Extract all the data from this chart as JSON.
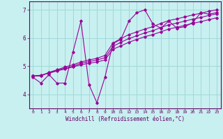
{
  "title": "",
  "xlabel": "Windchill (Refroidissement éolien,°C)",
  "ylabel": "",
  "background_color": "#c8f0f0",
  "grid_color": "#a0d8d8",
  "line_color": "#990099",
  "xlim": [
    -0.5,
    23.5
  ],
  "ylim": [
    3.5,
    7.3
  ],
  "xticks": [
    0,
    1,
    2,
    3,
    4,
    5,
    6,
    7,
    8,
    9,
    10,
    11,
    12,
    13,
    14,
    15,
    16,
    17,
    18,
    19,
    20,
    21,
    22,
    23
  ],
  "yticks": [
    4,
    5,
    6,
    7
  ],
  "x_data": [
    0,
    1,
    2,
    3,
    4,
    5,
    6,
    7,
    8,
    9,
    10,
    11,
    12,
    13,
    14,
    15,
    16,
    17,
    18,
    19,
    20,
    21,
    22,
    23
  ],
  "y_main": [
    4.6,
    4.4,
    4.7,
    4.4,
    4.4,
    5.5,
    6.6,
    4.35,
    3.7,
    4.6,
    5.8,
    5.95,
    6.6,
    6.9,
    7.0,
    6.5,
    6.35,
    6.6,
    6.35,
    6.4,
    6.55,
    6.9,
    6.85,
    6.9
  ],
  "y_upper": [
    4.65,
    4.65,
    4.78,
    4.87,
    4.97,
    5.05,
    5.15,
    5.22,
    5.28,
    5.38,
    5.82,
    5.98,
    6.12,
    6.22,
    6.32,
    6.4,
    6.52,
    6.62,
    6.68,
    6.75,
    6.82,
    6.88,
    6.95,
    7.0
  ],
  "y_lower": [
    4.65,
    4.68,
    4.75,
    4.83,
    4.9,
    4.97,
    5.05,
    5.1,
    5.15,
    5.22,
    5.6,
    5.72,
    5.85,
    5.95,
    6.05,
    6.12,
    6.22,
    6.32,
    6.38,
    6.45,
    6.52,
    6.58,
    6.65,
    6.72
  ],
  "y_mid": [
    4.65,
    4.67,
    4.77,
    4.85,
    4.93,
    5.0,
    5.1,
    5.16,
    5.22,
    5.3,
    5.7,
    5.85,
    5.98,
    6.08,
    6.18,
    6.26,
    6.37,
    6.47,
    6.53,
    6.6,
    6.67,
    6.73,
    6.8,
    6.86
  ]
}
